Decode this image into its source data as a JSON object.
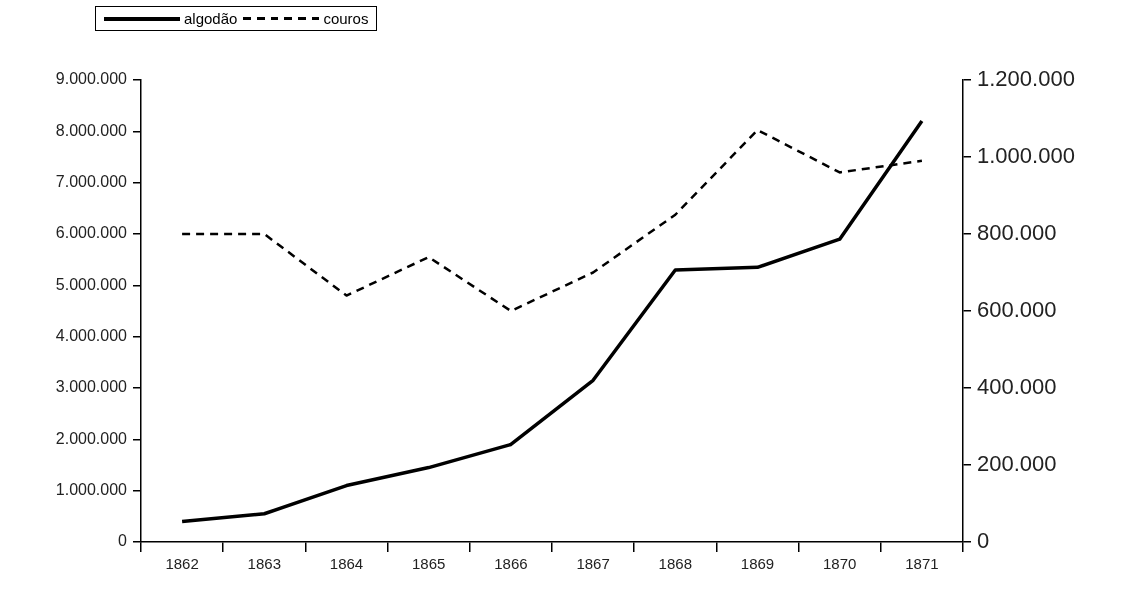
{
  "chart_data": {
    "type": "line",
    "categories": [
      "1862",
      "1863",
      "1864",
      "1865",
      "1866",
      "1867",
      "1868",
      "1869",
      "1870",
      "1871"
    ],
    "series": [
      {
        "name": "algodão",
        "color": "#000000",
        "line_style": "solid",
        "values": [
          400000,
          550000,
          1100000,
          1450000,
          1900000,
          3150000,
          5300000,
          5350000,
          5900000,
          8200000
        ]
      },
      {
        "name": "couros",
        "color": "#000000",
        "line_style": "dashed",
        "axis": "y2",
        "values": [
          800000,
          800000,
          640000,
          740000,
          600000,
          700000,
          850000,
          1070000,
          960000,
          990000
        ]
      }
    ],
    "ylim": [
      0,
      9000000
    ],
    "yticks": [
      {
        "value": 0,
        "label": "0"
      },
      {
        "value": 1000000,
        "label": "1.000.000"
      },
      {
        "value": 2000000,
        "label": "2.000.000"
      },
      {
        "value": 3000000,
        "label": "3.000.000"
      },
      {
        "value": 4000000,
        "label": "4.000.000"
      },
      {
        "value": 5000000,
        "label": "5.000.000"
      },
      {
        "value": 6000000,
        "label": "6.000.000"
      },
      {
        "value": 7000000,
        "label": "7.000.000"
      },
      {
        "value": 8000000,
        "label": "8.000.000"
      },
      {
        "value": 9000000,
        "label": "9.000.000"
      }
    ],
    "y2lim": [
      0,
      1200000
    ],
    "y2ticks": [
      {
        "value": 0,
        "label": "0"
      },
      {
        "value": 200000,
        "label": "200.000"
      },
      {
        "value": 400000,
        "label": "400.000"
      },
      {
        "value": 600000,
        "label": "600.000"
      },
      {
        "value": 800000,
        "label": "800.000"
      },
      {
        "value": 1000000,
        "label": "1.000.000"
      },
      {
        "value": 1200000,
        "label": "1.200.000"
      }
    ],
    "legend": "top left",
    "grid": false,
    "marker": "none"
  }
}
